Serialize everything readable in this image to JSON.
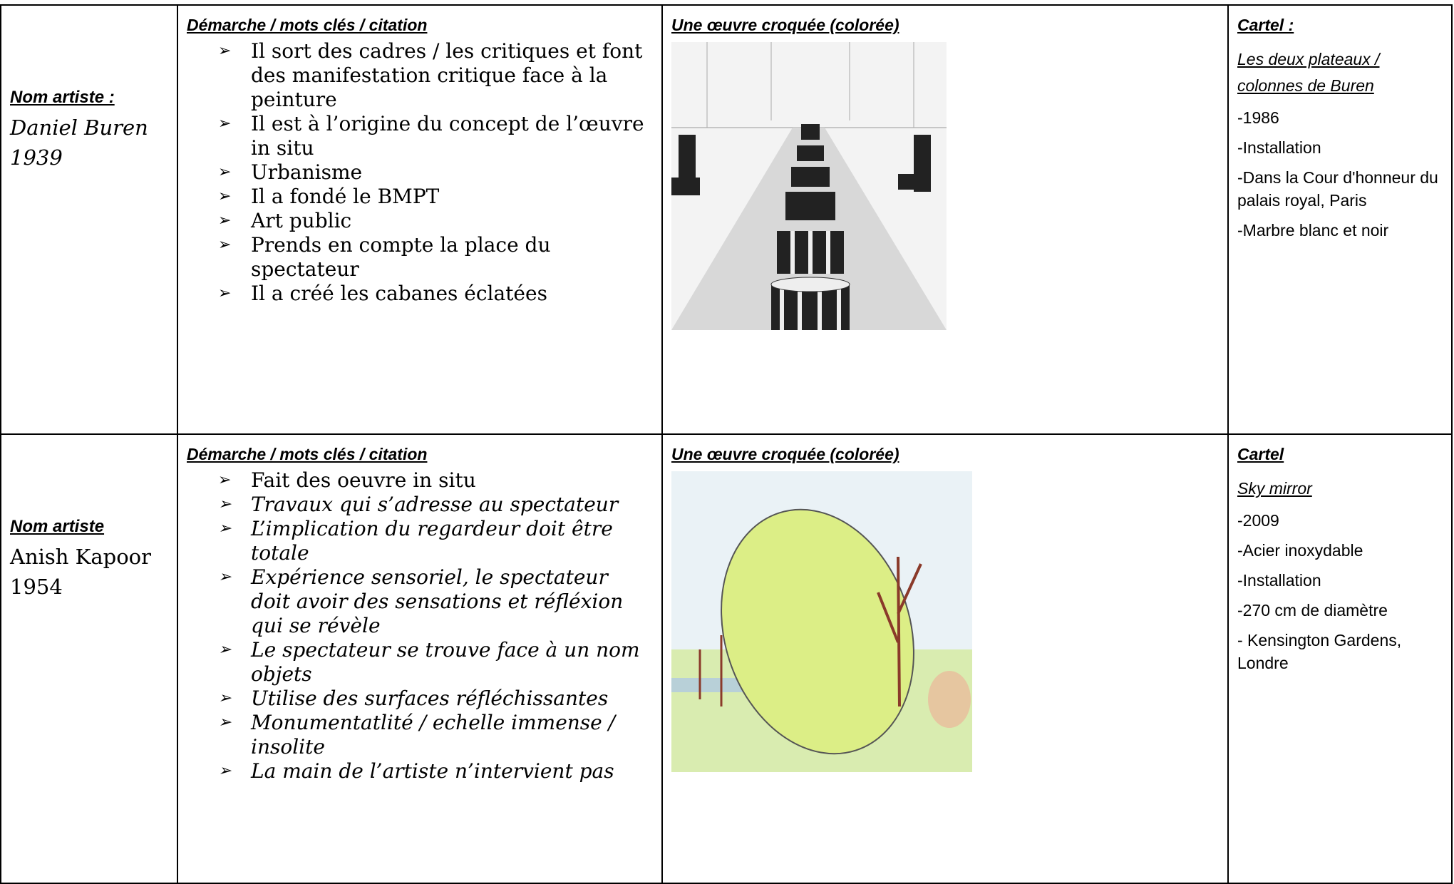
{
  "rows": [
    {
      "artist": {
        "label": "Nom artiste :",
        "name": "Daniel Buren",
        "year": "1939"
      },
      "approach": {
        "heading": "Démarche / mots clés / citation",
        "items": [
          "Il sort des cadres / les critiques et font des manifestation critique face à la peinture",
          "Il est à l’origine du concept de l’œuvre in situ",
          "Urbanisme",
          "Il a fondé le BMPT",
          "Art public",
          "Prends en compte la place du spectateur",
          "Il a créé les cabanes éclatées"
        ]
      },
      "sketch": {
        "heading": "Une œuvre croquée (colorée)"
      },
      "cartel": {
        "heading": "Cartel :",
        "title": "Les deux plateaux / colonnes de Buren",
        "details": [
          "-1986",
          "-Installation",
          "-Dans la Cour d'honneur du palais royal, Paris",
          "-Marbre blanc et noir"
        ]
      }
    },
    {
      "artist": {
        "label": "Nom artiste",
        "name": "Anish Kapoor",
        "year": "1954"
      },
      "approach": {
        "heading": "Démarche / mots clés / citation",
        "items": [
          "Fait des oeuvre in situ",
          "Travaux qui s’adresse au spectateur",
          "L’implication du regardeur doit être totale",
          "Expérience sensoriel, le spectateur doit avoir des sensations et réfléxion qui se révèle",
          "Le spectateur se trouve face à un nom objets",
          "Utilise des surfaces réfléchissantes",
          "Monumentatlité / echelle immense / insolite",
          "La main de l’artiste n’intervient pas"
        ]
      },
      "sketch": {
        "heading": "Une œuvre croquée (colorée)"
      },
      "cartel": {
        "heading": "Cartel",
        "title": "Sky mirror",
        "details": [
          "-2009",
          "-Acier inoxydable",
          "-Installation",
          "-270 cm de diamètre",
          "- Kensington Gardens, Londre"
        ]
      }
    }
  ]
}
